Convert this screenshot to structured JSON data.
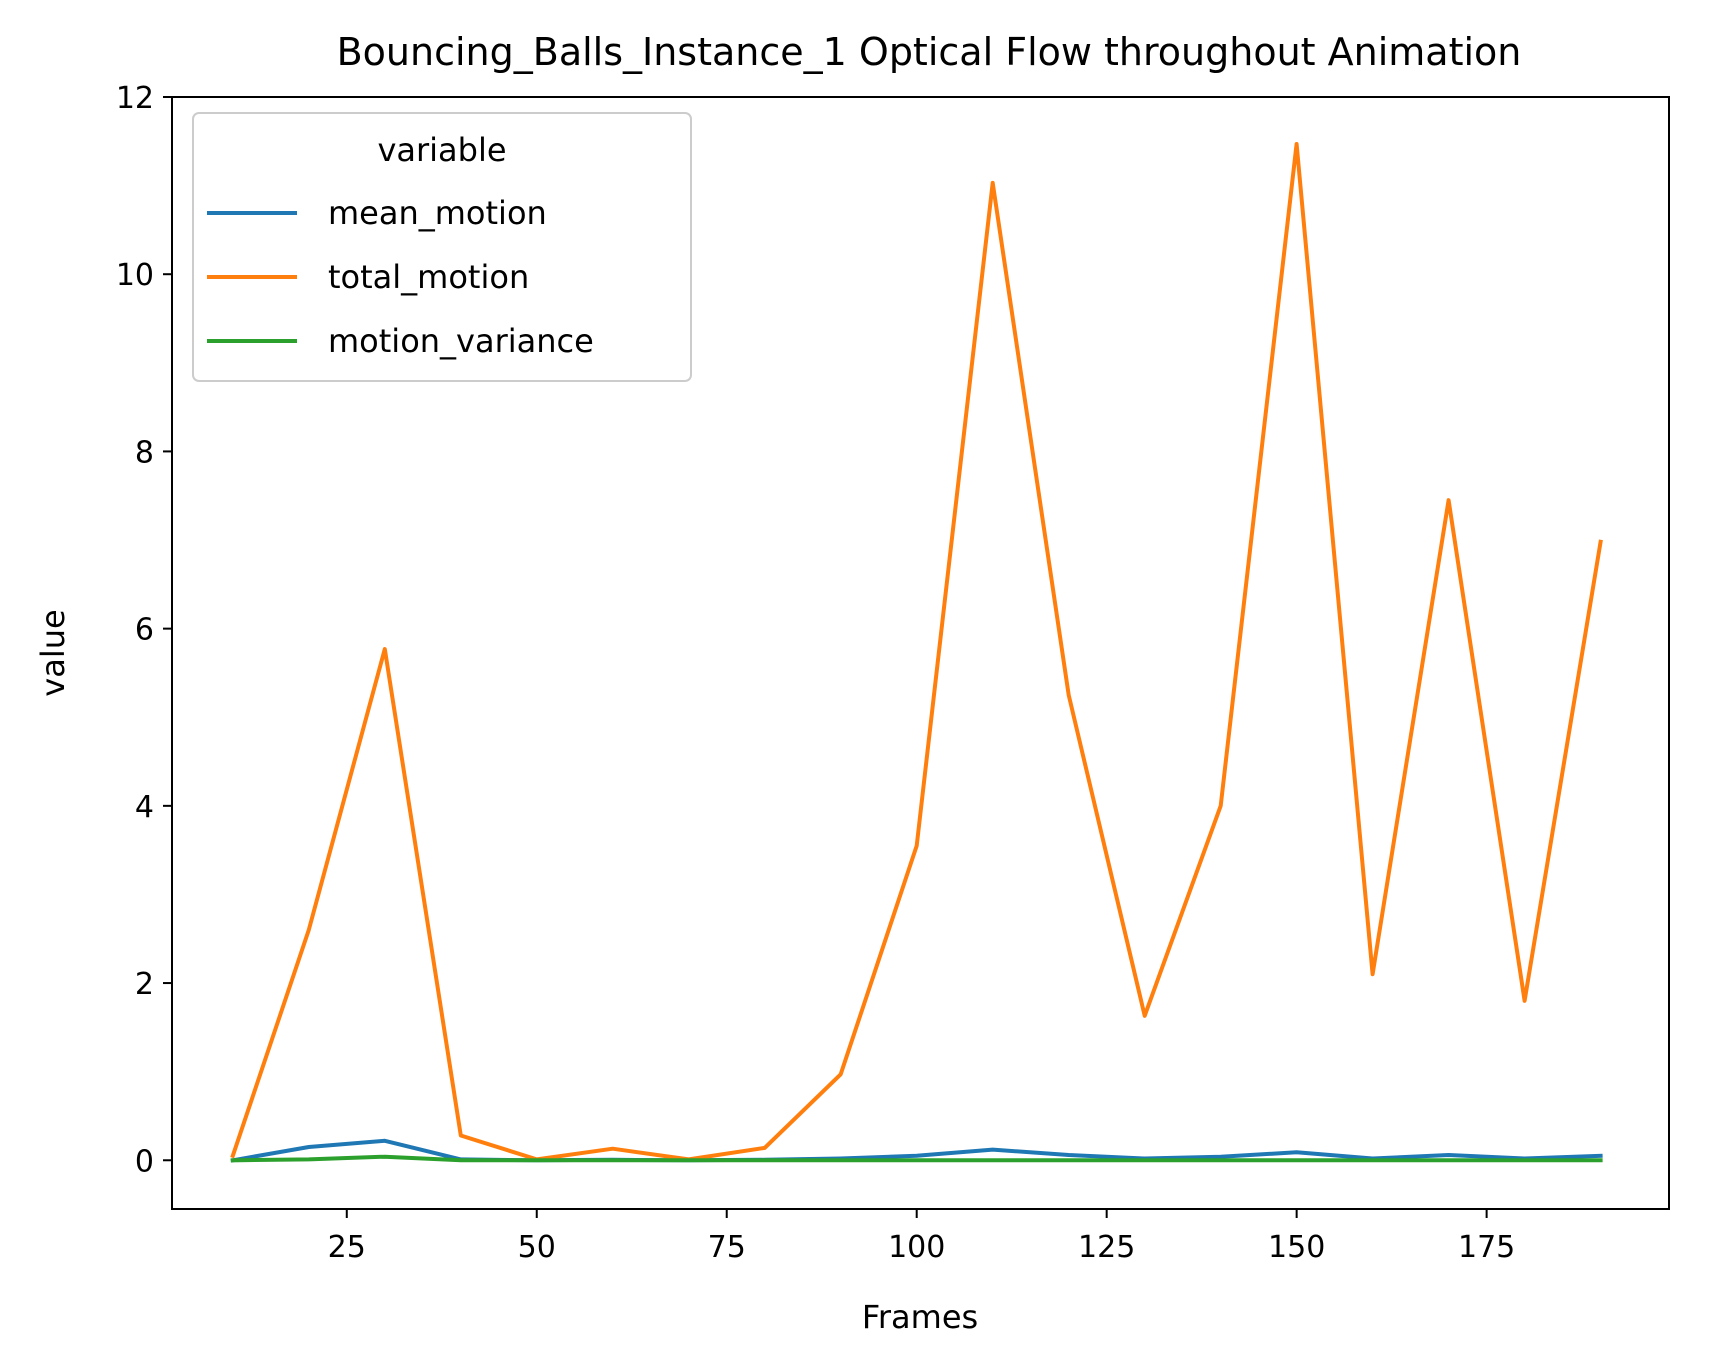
{
  "chart_data": {
    "type": "line",
    "title": "Bouncing_Balls_Instance_1 Optical Flow throughout Animation",
    "xlabel": "Frames",
    "ylabel": "value",
    "xlim": [
      2,
      199
    ],
    "ylim": [
      -0.55,
      12
    ],
    "xticks": [
      25,
      50,
      75,
      100,
      125,
      150,
      175
    ],
    "yticks": [
      0,
      2,
      4,
      6,
      8,
      10,
      12
    ],
    "grid": false,
    "legend": {
      "title": "variable",
      "placement": "top-left"
    },
    "x": [
      10,
      20,
      30,
      40,
      50,
      60,
      70,
      80,
      90,
      100,
      110,
      120,
      130,
      140,
      150,
      160,
      170,
      180,
      190
    ],
    "series": [
      {
        "name": "mean_motion",
        "color": "#1f77b4",
        "values": [
          0.0,
          0.15,
          0.22,
          0.01,
          0.0,
          0.005,
          0.0,
          0.005,
          0.02,
          0.05,
          0.12,
          0.06,
          0.02,
          0.04,
          0.09,
          0.02,
          0.06,
          0.02,
          0.05
        ]
      },
      {
        "name": "total_motion",
        "color": "#ff7f0e",
        "values": [
          0.05,
          2.6,
          5.77,
          0.28,
          0.01,
          0.13,
          0.01,
          0.14,
          0.97,
          3.55,
          11.03,
          5.25,
          1.63,
          4.0,
          11.47,
          2.1,
          7.45,
          1.8,
          6.98
        ]
      },
      {
        "name": "motion_variance",
        "color": "#2ca02c",
        "values": [
          0.0,
          0.01,
          0.04,
          0.0,
          0.0,
          0.0,
          0.0,
          0.0,
          0.0,
          0.0,
          0.0,
          0.0,
          0.0,
          0.0,
          0.0,
          0.0,
          0.0,
          0.0,
          0.0
        ]
      }
    ]
  }
}
